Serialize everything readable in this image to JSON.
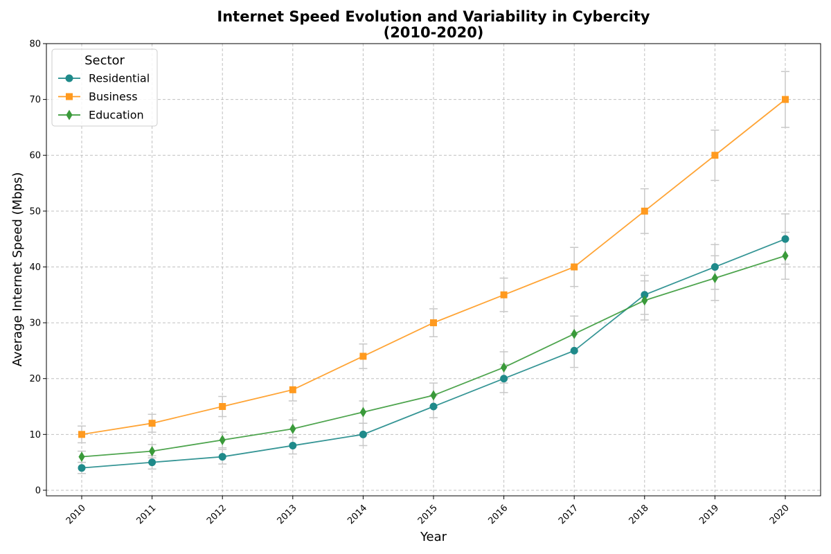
{
  "chart_data": {
    "type": "line",
    "title_line1": "Internet Speed Evolution and Variability in Cybercity",
    "title_line2": "(2010-2020)",
    "xlabel": "Year",
    "ylabel": "Average Internet Speed (Mbps)",
    "x": [
      "2010",
      "2011",
      "2012",
      "2013",
      "2014",
      "2015",
      "2016",
      "2017",
      "2018",
      "2019",
      "2020"
    ],
    "ylim": [
      -1,
      80
    ],
    "yticks": [
      0,
      10,
      20,
      30,
      40,
      50,
      60,
      70,
      80
    ],
    "grid": true,
    "legend_title": "Sector",
    "legend_position": "top-left",
    "series": [
      {
        "name": "Residential",
        "marker": "circle",
        "color": "#1f8a8a",
        "values": [
          4,
          5,
          6,
          8,
          10,
          15,
          20,
          25,
          35,
          40,
          45
        ],
        "errors": [
          1.0,
          1.2,
          1.3,
          1.5,
          2.0,
          2.0,
          2.5,
          3.0,
          3.5,
          4.0,
          4.5
        ]
      },
      {
        "name": "Business",
        "marker": "square",
        "color": "#ff9a1f",
        "values": [
          10,
          12,
          15,
          18,
          24,
          30,
          35,
          40,
          50,
          60,
          70
        ],
        "errors": [
          1.5,
          1.6,
          1.8,
          2.0,
          2.2,
          2.5,
          3.0,
          3.5,
          4.0,
          4.5,
          5.0
        ]
      },
      {
        "name": "Education",
        "marker": "diamond",
        "color": "#3a9a3a",
        "values": [
          6,
          7,
          9,
          11,
          14,
          17,
          22,
          28,
          34,
          38,
          42
        ],
        "errors": [
          1.0,
          1.2,
          1.4,
          1.6,
          2.0,
          2.2,
          2.8,
          3.2,
          3.5,
          4.0,
          4.2
        ]
      }
    ]
  }
}
